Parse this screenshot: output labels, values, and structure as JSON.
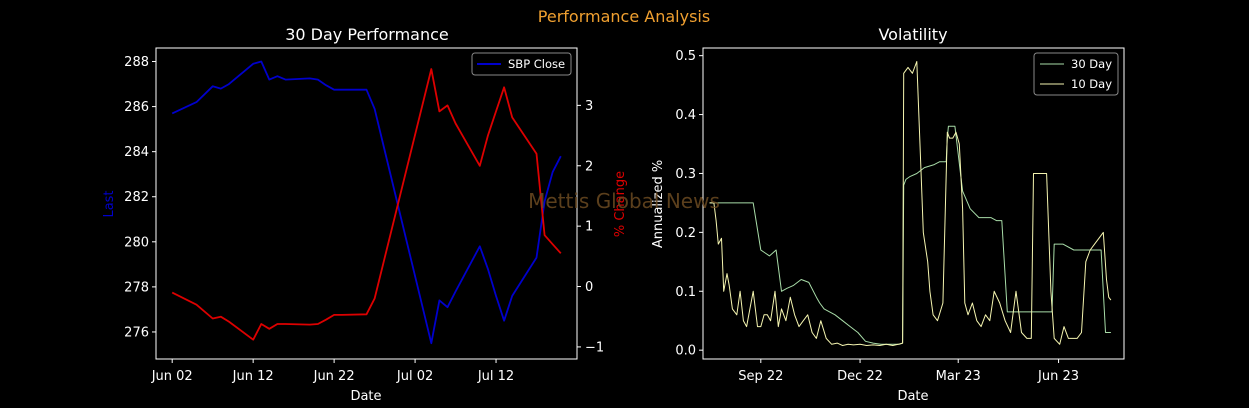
{
  "figure": {
    "suptitle": "Performance Analysis",
    "watermark": "Mettis Global News",
    "colors": {
      "background": "#000000",
      "suptitle": "#f0a030",
      "text": "#ffffff",
      "last_series": "#0000cc",
      "pct_series": "#dd0000",
      "vol30": "#a8dca8",
      "vol10": "#f5f5b0",
      "watermark": "#6b4a22"
    }
  },
  "chart_data": [
    {
      "type": "line",
      "title": "30 Day Performance",
      "xlabel": "Date",
      "ylabel": "Last",
      "ylabel_right": "% Change",
      "x_ticks": [
        "Jun 02",
        "Jun 12",
        "Jun 22",
        "Jul 02",
        "Jul 12"
      ],
      "x_tick_values": [
        "2023-06-02",
        "2023-06-12",
        "2023-06-22",
        "2023-07-02",
        "2023-07-12"
      ],
      "xlim": [
        "2023-05-31",
        "2023-07-22"
      ],
      "ylim": [
        274.8,
        288.6
      ],
      "y_ticks": [
        276,
        278,
        280,
        282,
        284,
        286,
        288
      ],
      "ylim_right": [
        -1.2,
        3.95
      ],
      "y_ticks_right": [
        -1,
        0,
        1,
        2,
        3
      ],
      "legend": {
        "position": "top-right",
        "entries": [
          "SBP Close"
        ]
      },
      "series": [
        {
          "name": "SBP Close",
          "axis": "left",
          "x": [
            "2023-06-02",
            "2023-06-05",
            "2023-06-07",
            "2023-06-08",
            "2023-06-09",
            "2023-06-12",
            "2023-06-13",
            "2023-06-14",
            "2023-06-15",
            "2023-06-16",
            "2023-06-19",
            "2023-06-20",
            "2023-06-21",
            "2023-06-22",
            "2023-06-23",
            "2023-06-26",
            "2023-06-27",
            "2023-07-04",
            "2023-07-05",
            "2023-07-06",
            "2023-07-07",
            "2023-07-10",
            "2023-07-11",
            "2023-07-12",
            "2023-07-13",
            "2023-07-14",
            "2023-07-17",
            "2023-07-18",
            "2023-07-19",
            "2023-07-20"
          ],
          "y": [
            285.7,
            286.2,
            286.9,
            286.8,
            287.0,
            287.9,
            288.0,
            287.2,
            287.35,
            287.2,
            287.25,
            287.2,
            286.95,
            286.75,
            286.75,
            286.75,
            285.9,
            275.5,
            277.4,
            277.1,
            277.8,
            279.8,
            278.8,
            277.6,
            276.5,
            277.6,
            279.3,
            281.8,
            283.1,
            283.8
          ]
        },
        {
          "name": "% Change",
          "axis": "right",
          "x": [
            "2023-06-02",
            "2023-06-05",
            "2023-06-07",
            "2023-06-08",
            "2023-06-09",
            "2023-06-12",
            "2023-06-13",
            "2023-06-14",
            "2023-06-15",
            "2023-06-16",
            "2023-06-19",
            "2023-06-20",
            "2023-06-21",
            "2023-06-22",
            "2023-06-23",
            "2023-06-26",
            "2023-06-27",
            "2023-07-04",
            "2023-07-05",
            "2023-07-06",
            "2023-07-07",
            "2023-07-10",
            "2023-07-11",
            "2023-07-12",
            "2023-07-13",
            "2023-07-14",
            "2023-07-17",
            "2023-07-18",
            "2023-07-19",
            "2023-07-20"
          ],
          "y": [
            -0.1,
            -0.3,
            -0.53,
            -0.5,
            -0.58,
            -0.88,
            -0.62,
            -0.7,
            -0.62,
            -0.62,
            -0.63,
            -0.62,
            -0.55,
            -0.47,
            -0.47,
            -0.46,
            -0.2,
            3.6,
            2.9,
            3.0,
            2.7,
            2.0,
            2.5,
            2.9,
            3.3,
            2.8,
            2.2,
            0.85,
            0.7,
            0.55
          ]
        }
      ]
    },
    {
      "type": "line",
      "title": "Volatility",
      "xlabel": "Date",
      "ylabel": "Annualized %",
      "x_ticks": [
        "Sep 22",
        "Dec 22",
        "Mar 23",
        "Jun 23"
      ],
      "x_tick_values": [
        "2022-09-01",
        "2022-12-01",
        "2023-03-01",
        "2023-06-01"
      ],
      "xlim": [
        "2022-07-10",
        "2023-07-31"
      ],
      "ylim": [
        -0.015,
        0.513
      ],
      "y_ticks": [
        0.0,
        0.1,
        0.2,
        0.3,
        0.4,
        0.5
      ],
      "y_tick_labels": [
        "0.0",
        "0.1",
        "0.2",
        "0.3",
        "0.4",
        "0.5"
      ],
      "legend": {
        "position": "top-right",
        "entries": [
          "30 Day",
          "10 Day"
        ]
      },
      "series": [
        {
          "name": "30 Day",
          "x": [
            "2022-07-16",
            "2022-07-21",
            "2022-07-22",
            "2022-08-09",
            "2022-08-10",
            "2022-08-12",
            "2022-08-14",
            "2022-08-15",
            "2022-08-17",
            "2022-08-19",
            "2022-08-20",
            "2022-08-25",
            "2022-09-01",
            "2022-09-05",
            "2022-09-09",
            "2022-09-15",
            "2022-09-20",
            "2022-09-25",
            "2022-10-01",
            "2022-10-08",
            "2022-10-15",
            "2022-10-22",
            "2022-10-25",
            "2022-10-29",
            "2022-11-08",
            "2022-11-15",
            "2022-11-22",
            "2022-11-29",
            "2022-12-06",
            "2022-12-13",
            "2022-12-20",
            "2022-12-31",
            "2023-01-06",
            "2023-01-09",
            "2023-01-10",
            "2023-01-12",
            "2023-01-16",
            "2023-01-22",
            "2023-01-29",
            "2023-02-07",
            "2023-02-12",
            "2023-02-14",
            "2023-02-16",
            "2023-02-18",
            "2023-02-19",
            "2023-02-20",
            "2023-02-26",
            "2023-03-05",
            "2023-03-12",
            "2023-03-20",
            "2023-03-31",
            "2023-04-05",
            "2023-04-10",
            "2023-04-15",
            "2023-04-25",
            "2023-05-10",
            "2023-05-12",
            "2023-05-13",
            "2023-05-20",
            "2023-05-26",
            "2023-05-28",
            "2023-06-05",
            "2023-06-15",
            "2023-06-21",
            "2023-06-27",
            "2023-06-29",
            "2023-07-10",
            "2023-07-14",
            "2023-07-17",
            "2023-07-19"
          ],
          "y": [
            0.25,
            0.25,
            0.25,
            0.25,
            0.25,
            0.25,
            0.25,
            0.25,
            0.25,
            0.25,
            0.25,
            0.25,
            0.17,
            0.165,
            0.16,
            0.17,
            0.1,
            0.105,
            0.11,
            0.12,
            0.115,
            0.09,
            0.08,
            0.07,
            0.06,
            0.05,
            0.04,
            0.03,
            0.015,
            0.012,
            0.01,
            0.01,
            0.01,
            0.012,
            0.28,
            0.29,
            0.295,
            0.3,
            0.31,
            0.315,
            0.32,
            0.32,
            0.32,
            0.32,
            0.36,
            0.38,
            0.38,
            0.27,
            0.24,
            0.225,
            0.225,
            0.22,
            0.22,
            0.065,
            0.065,
            0.065,
            0.065,
            0.065,
            0.065,
            0.065,
            0.18,
            0.18,
            0.17,
            0.17,
            0.17,
            0.17,
            0.17,
            0.03,
            0.03,
            0.03
          ]
        },
        {
          "name": "10 Day",
          "x": [
            "2022-07-16",
            "2022-07-20",
            "2022-07-22",
            "2022-07-24",
            "2022-07-27",
            "2022-07-29",
            "2022-08-01",
            "2022-08-03",
            "2022-08-06",
            "2022-08-10",
            "2022-08-13",
            "2022-08-16",
            "2022-08-19",
            "2022-08-22",
            "2022-08-25",
            "2022-08-29",
            "2022-09-01",
            "2022-09-04",
            "2022-09-07",
            "2022-09-10",
            "2022-09-14",
            "2022-09-17",
            "2022-09-20",
            "2022-09-24",
            "2022-09-28",
            "2022-10-02",
            "2022-10-06",
            "2022-10-10",
            "2022-10-14",
            "2022-10-18",
            "2022-10-22",
            "2022-10-26",
            "2022-10-31",
            "2022-11-05",
            "2022-11-10",
            "2022-11-15",
            "2022-11-20",
            "2022-11-25",
            "2022-12-01",
            "2022-12-07",
            "2022-12-13",
            "2022-12-19",
            "2022-12-25",
            "2022-12-31",
            "2023-01-05",
            "2023-01-09",
            "2023-01-10",
            "2023-01-14",
            "2023-01-18",
            "2023-01-22",
            "2023-01-26",
            "2023-01-28",
            "2023-02-01",
            "2023-02-03",
            "2023-02-06",
            "2023-02-10",
            "2023-02-15",
            "2023-02-19",
            "2023-02-21",
            "2023-02-24",
            "2023-02-27",
            "2023-03-02",
            "2023-03-05",
            "2023-03-07",
            "2023-03-10",
            "2023-03-14",
            "2023-03-18",
            "2023-03-22",
            "2023-03-26",
            "2023-03-30",
            "2023-04-03",
            "2023-04-08",
            "2023-04-13",
            "2023-04-18",
            "2023-04-23",
            "2023-04-28",
            "2023-05-03",
            "2023-05-07",
            "2023-05-09",
            "2023-05-13",
            "2023-05-17",
            "2023-05-21",
            "2023-05-25",
            "2023-05-28",
            "2023-06-02",
            "2023-06-06",
            "2023-06-10",
            "2023-06-14",
            "2023-06-18",
            "2023-06-22",
            "2023-06-26",
            "2023-06-30",
            "2023-07-04",
            "2023-07-08",
            "2023-07-12",
            "2023-07-15",
            "2023-07-17",
            "2023-07-19"
          ],
          "y": [
            0.25,
            0.25,
            0.22,
            0.18,
            0.19,
            0.1,
            0.13,
            0.11,
            0.07,
            0.06,
            0.1,
            0.05,
            0.04,
            0.07,
            0.1,
            0.04,
            0.04,
            0.06,
            0.06,
            0.05,
            0.1,
            0.04,
            0.07,
            0.05,
            0.09,
            0.06,
            0.04,
            0.05,
            0.06,
            0.03,
            0.02,
            0.05,
            0.02,
            0.01,
            0.012,
            0.008,
            0.01,
            0.009,
            0.01,
            0.008,
            0.009,
            0.008,
            0.01,
            0.008,
            0.01,
            0.012,
            0.47,
            0.48,
            0.47,
            0.49,
            0.3,
            0.2,
            0.15,
            0.1,
            0.06,
            0.05,
            0.08,
            0.37,
            0.36,
            0.36,
            0.37,
            0.35,
            0.24,
            0.08,
            0.06,
            0.08,
            0.05,
            0.04,
            0.06,
            0.05,
            0.1,
            0.08,
            0.05,
            0.03,
            0.1,
            0.03,
            0.02,
            0.02,
            0.3,
            0.3,
            0.3,
            0.3,
            0.1,
            0.02,
            0.01,
            0.04,
            0.02,
            0.02,
            0.02,
            0.03,
            0.15,
            0.17,
            0.18,
            0.19,
            0.2,
            0.12,
            0.09,
            0.085
          ]
        }
      ]
    }
  ]
}
